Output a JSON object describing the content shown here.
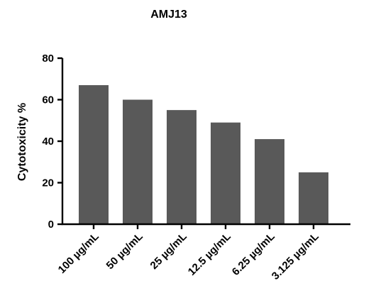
{
  "chart_data": {
    "type": "bar",
    "title": "AMJ13",
    "xlabel": "",
    "ylabel": "Cytotoxicity %",
    "categories": [
      "100 µg/mL",
      "50 µg/mL",
      "25 µg/mL",
      "12.5 µg/mL",
      "6.25 µg/mL",
      "3.125 µg/mL"
    ],
    "values": [
      67,
      60,
      55,
      49,
      41,
      25
    ],
    "ylim": [
      0,
      80
    ],
    "yticks": [
      "0",
      "20",
      "40",
      "60",
      "80"
    ],
    "grid": false,
    "bar_color": "#595959"
  }
}
